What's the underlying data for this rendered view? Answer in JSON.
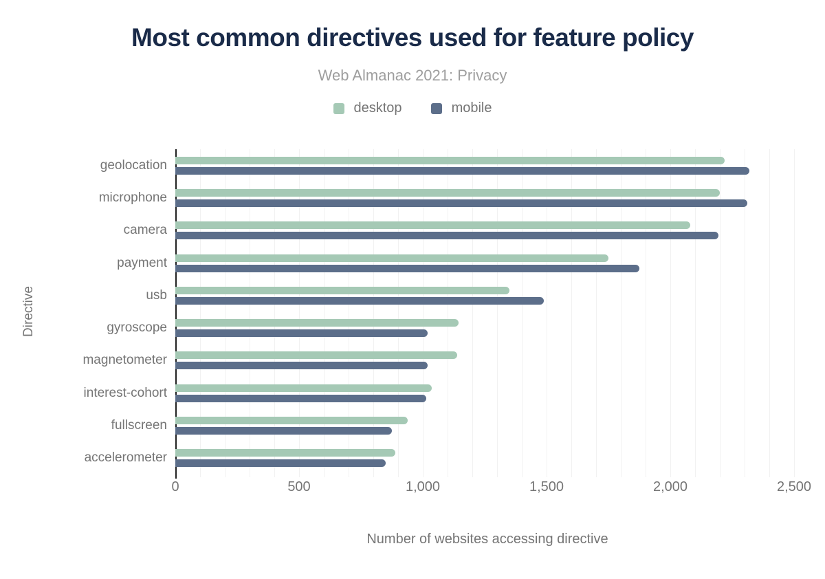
{
  "header": {
    "title": "Most common directives used for feature policy",
    "subtitle": "Web Almanac 2021: Privacy"
  },
  "colors": {
    "title_text": "#1a2b49",
    "muted_text": "#757575",
    "subtitle_text": "#9e9e9e",
    "desktop": "#a5c9b5",
    "mobile": "#5c6e8a",
    "gridline": "#f1f1f1",
    "axis_line": "#212121"
  },
  "chart_data": {
    "type": "bar",
    "orientation": "horizontal",
    "title": "Most common directives used for feature policy",
    "subtitle": "Web Almanac 2021: Privacy",
    "xlabel": "Number of websites accessing directive",
    "ylabel": "Directive",
    "categories": [
      "geolocation",
      "microphone",
      "camera",
      "payment",
      "usb",
      "gyroscope",
      "magnetometer",
      "interest-cohort",
      "fullscreen",
      "accelerometer"
    ],
    "series": [
      {
        "name": "desktop",
        "color": "#a5c9b5",
        "values": [
          2220,
          2200,
          2080,
          1750,
          1350,
          1145,
          1140,
          1035,
          940,
          890
        ]
      },
      {
        "name": "mobile",
        "color": "#5c6e8a",
        "values": [
          2320,
          2310,
          2195,
          1875,
          1490,
          1020,
          1020,
          1015,
          875,
          850
        ]
      }
    ],
    "xlim": [
      0,
      2500
    ],
    "x_ticks": [
      0,
      500,
      1000,
      1500,
      2000,
      2500
    ],
    "x_tick_labels": [
      "0",
      "500",
      "1,000",
      "1,500",
      "2,000",
      "2,500"
    ],
    "gridline_step": 100,
    "grid": true,
    "legend_position": "top"
  }
}
